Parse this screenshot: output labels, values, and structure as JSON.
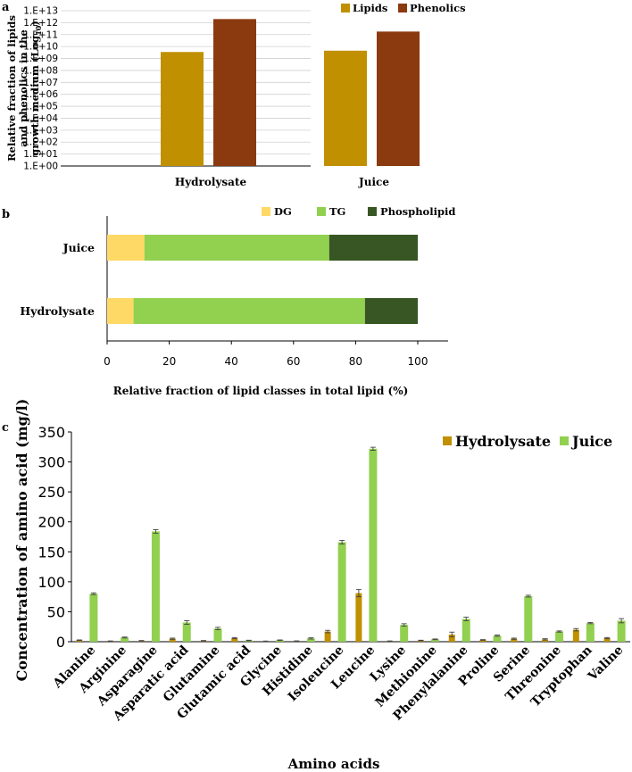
{
  "panels": {
    "a": "a",
    "b": "b",
    "c": "c"
  },
  "chart_data": [
    {
      "type": "bar",
      "scale": "log10",
      "categories": [
        "Hydrolysate",
        "Juice"
      ],
      "series": [
        {
          "name": "Lipids",
          "values": [
            3500000000.0,
            4500000000.0
          ],
          "color": "#c09000"
        },
        {
          "name": "Phenolics",
          "values": [
            2000000000000.0,
            180000000000.0
          ],
          "color": "#8b3a10"
        }
      ],
      "ylabel_lines": [
        "Relative fraction of lipids",
        "and phenolics in the",
        "growth medium (Log",
        "10",
        ")"
      ],
      "yticks": [
        "1.E+00",
        "1.E+01",
        "1.E+02",
        "1.E+03",
        "1.E+04",
        "1.E+05",
        "1.E+06",
        "1.E+07",
        "1.E+08",
        "1.E+09",
        "1.E+10",
        "1.E+11",
        "1.E+12",
        "1.E+13"
      ],
      "ylim_exp": [
        0,
        13
      ],
      "grid": true,
      "legend": "top-right"
    },
    {
      "type": "stacked-barh",
      "categories": [
        "Juice",
        "Hydrolysate"
      ],
      "series": [
        {
          "name": "DG",
          "values": [
            12,
            8.5
          ],
          "color": "#ffd966"
        },
        {
          "name": "TG",
          "values": [
            59.5,
            74.5
          ],
          "color": "#92d050"
        },
        {
          "name": "Phospholipid",
          "values": [
            28.5,
            17
          ],
          "color": "#375623"
        }
      ],
      "xticks": [
        "0",
        "20",
        "40",
        "60",
        "80",
        "100"
      ],
      "xlim": [
        0,
        100
      ],
      "xlabel": "Relative fraction of lipid classes in total lipid (%)",
      "legend": "top"
    },
    {
      "type": "bar",
      "categories": [
        "Alanine",
        "Arginine",
        "Asparagine",
        "Asparatic acid",
        "Glutamine",
        "Glutamic acid",
        "Glycine",
        "Histidine",
        "Isoleucine",
        "Leucine",
        "Lysine",
        "Methionine",
        "Phenylalanine",
        "Proline",
        "Serine",
        "Threonine",
        "Tryptophan",
        "Valine"
      ],
      "series": [
        {
          "name": "Hydrolysate",
          "color": "#c09000",
          "values": [
            2.5,
            1,
            1.5,
            5,
            1.5,
            6,
            0.8,
            1,
            17,
            81,
            1,
            2,
            12,
            3,
            5,
            4,
            20,
            6
          ],
          "errors": [
            0.5,
            0.3,
            0.5,
            1,
            0.5,
            1,
            0.3,
            0.4,
            2,
            6,
            0.3,
            0.5,
            4,
            0.5,
            1,
            1,
            2,
            1
          ]
        },
        {
          "name": "Juice",
          "color": "#92d050",
          "values": [
            80,
            7,
            184,
            32,
            22,
            2,
            2.5,
            5.5,
            166,
            322,
            28,
            4,
            38,
            10,
            76,
            17,
            31,
            35
          ],
          "errors": [
            1.5,
            0.8,
            3,
            3,
            2,
            0.5,
            0.5,
            1,
            3,
            2.5,
            2,
            0.6,
            3,
            1,
            1.5,
            1,
            1,
            3.5
          ]
        }
      ],
      "yticks": [
        "0",
        "50",
        "100",
        "150",
        "200",
        "250",
        "300",
        "350"
      ],
      "ylim": [
        0,
        350
      ],
      "ylabel": "Concentration of amino acid (mg/l)",
      "xlabel": "Amino acids",
      "grid": false,
      "legend": "top-right"
    }
  ]
}
